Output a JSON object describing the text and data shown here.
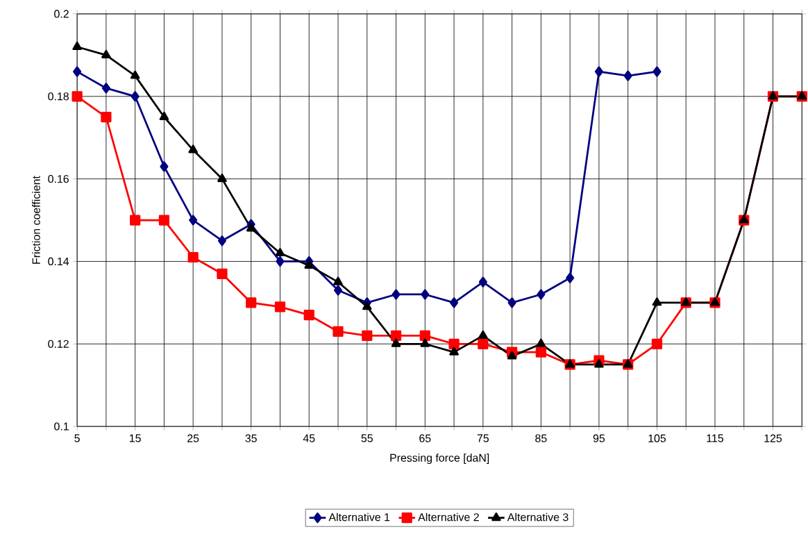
{
  "chart_data": {
    "type": "line",
    "xlabel": "Pressing force [daN]",
    "ylabel": "Friction coefficient",
    "x": [
      5,
      10,
      15,
      20,
      25,
      30,
      35,
      40,
      45,
      50,
      55,
      60,
      65,
      70,
      75,
      80,
      85,
      90,
      95,
      100,
      105,
      110,
      115,
      120,
      125,
      130
    ],
    "xlim": [
      5,
      130
    ],
    "xticks": [
      5,
      {
        "value": 10,
        "label": null
      },
      15,
      {
        "value": 20,
        "label": null
      },
      25,
      {
        "value": 30,
        "label": null
      },
      35,
      {
        "value": 40,
        "label": null
      },
      45,
      {
        "value": 50,
        "label": null
      },
      55,
      {
        "value": 60,
        "label": null
      },
      65,
      {
        "value": 70,
        "label": null
      },
      75,
      {
        "value": 80,
        "label": null
      },
      85,
      {
        "value": 90,
        "label": null
      },
      95,
      {
        "value": 100,
        "label": null
      },
      105,
      {
        "value": 110,
        "label": null
      },
      115,
      {
        "value": 120,
        "label": null
      },
      125,
      {
        "value": 130,
        "label": null
      }
    ],
    "ylim": [
      0.1,
      0.2
    ],
    "yticks": [
      0.1,
      0.12,
      0.14,
      0.16,
      0.18,
      0.2
    ],
    "grid": true,
    "legend": "bottom",
    "line_style": "solid",
    "series": [
      {
        "name": "Alternative 1",
        "color": "#000080",
        "marker": "diamond",
        "values": [
          0.186,
          0.182,
          0.18,
          0.163,
          0.15,
          0.145,
          0.149,
          0.14,
          0.14,
          0.133,
          0.13,
          0.132,
          0.132,
          0.13,
          0.135,
          0.13,
          0.132,
          0.136,
          0.186,
          0.185,
          0.186,
          null,
          null,
          null,
          null,
          null
        ]
      },
      {
        "name": "Alternative 2",
        "color": "#ff0000",
        "marker": "square",
        "values": [
          0.18,
          0.175,
          0.15,
          0.15,
          0.141,
          0.137,
          0.13,
          0.129,
          0.127,
          0.123,
          0.122,
          0.122,
          0.122,
          0.12,
          0.12,
          0.118,
          0.118,
          0.115,
          0.116,
          0.115,
          0.12,
          0.13,
          0.13,
          0.15,
          0.18,
          0.18
        ]
      },
      {
        "name": "Alternative 3",
        "color": "#000000",
        "marker": "triangle",
        "values": [
          0.192,
          0.19,
          0.185,
          0.175,
          0.167,
          0.16,
          0.148,
          0.142,
          0.139,
          0.135,
          0.129,
          0.12,
          0.12,
          0.118,
          0.122,
          0.117,
          0.12,
          0.115,
          0.115,
          0.115,
          0.13,
          0.13,
          0.13,
          0.15,
          0.18,
          0.18
        ]
      }
    ]
  }
}
